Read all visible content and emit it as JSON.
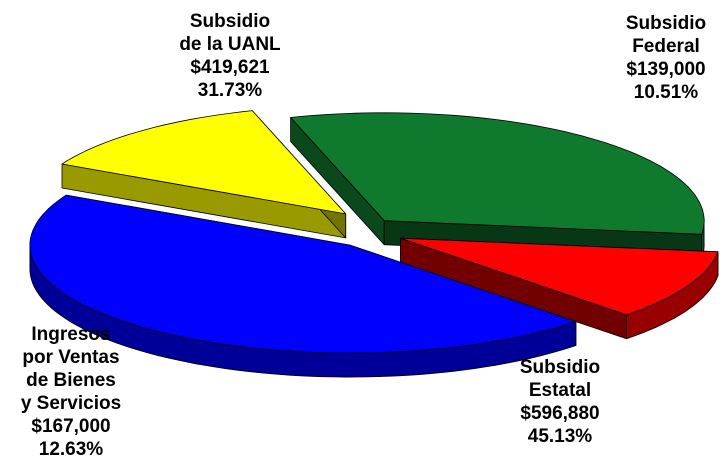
{
  "chart_data": {
    "type": "pie",
    "style": "3d-exploded",
    "slices": [
      {
        "key": "uanl",
        "label_lines": [
          "Subsidio",
          "de la UANL"
        ],
        "value_text": "$419,621",
        "percent_text": "31.73%",
        "value": 419621,
        "percent": 31.73,
        "color": "#0f7a2e"
      },
      {
        "key": "federal",
        "label_lines": [
          "Subsidio",
          "Federal"
        ],
        "value_text": "$139,000",
        "percent_text": "10.51%",
        "value": 139000,
        "percent": 10.51,
        "color": "#ff0000"
      },
      {
        "key": "estatal",
        "label_lines": [
          "Subsidio",
          "Estatal"
        ],
        "value_text": "$596,880",
        "percent_text": "45.13%",
        "value": 596880,
        "percent": 45.13,
        "color": "#0000ff"
      },
      {
        "key": "ingresos",
        "label_lines": [
          "Ingresos",
          "por Ventas",
          "de Bienes",
          "y Servicios"
        ],
        "value_text": "$167,000",
        "percent_text": "12.63%",
        "value": 167000,
        "percent": 12.63,
        "color": "#ffff00"
      }
    ]
  }
}
